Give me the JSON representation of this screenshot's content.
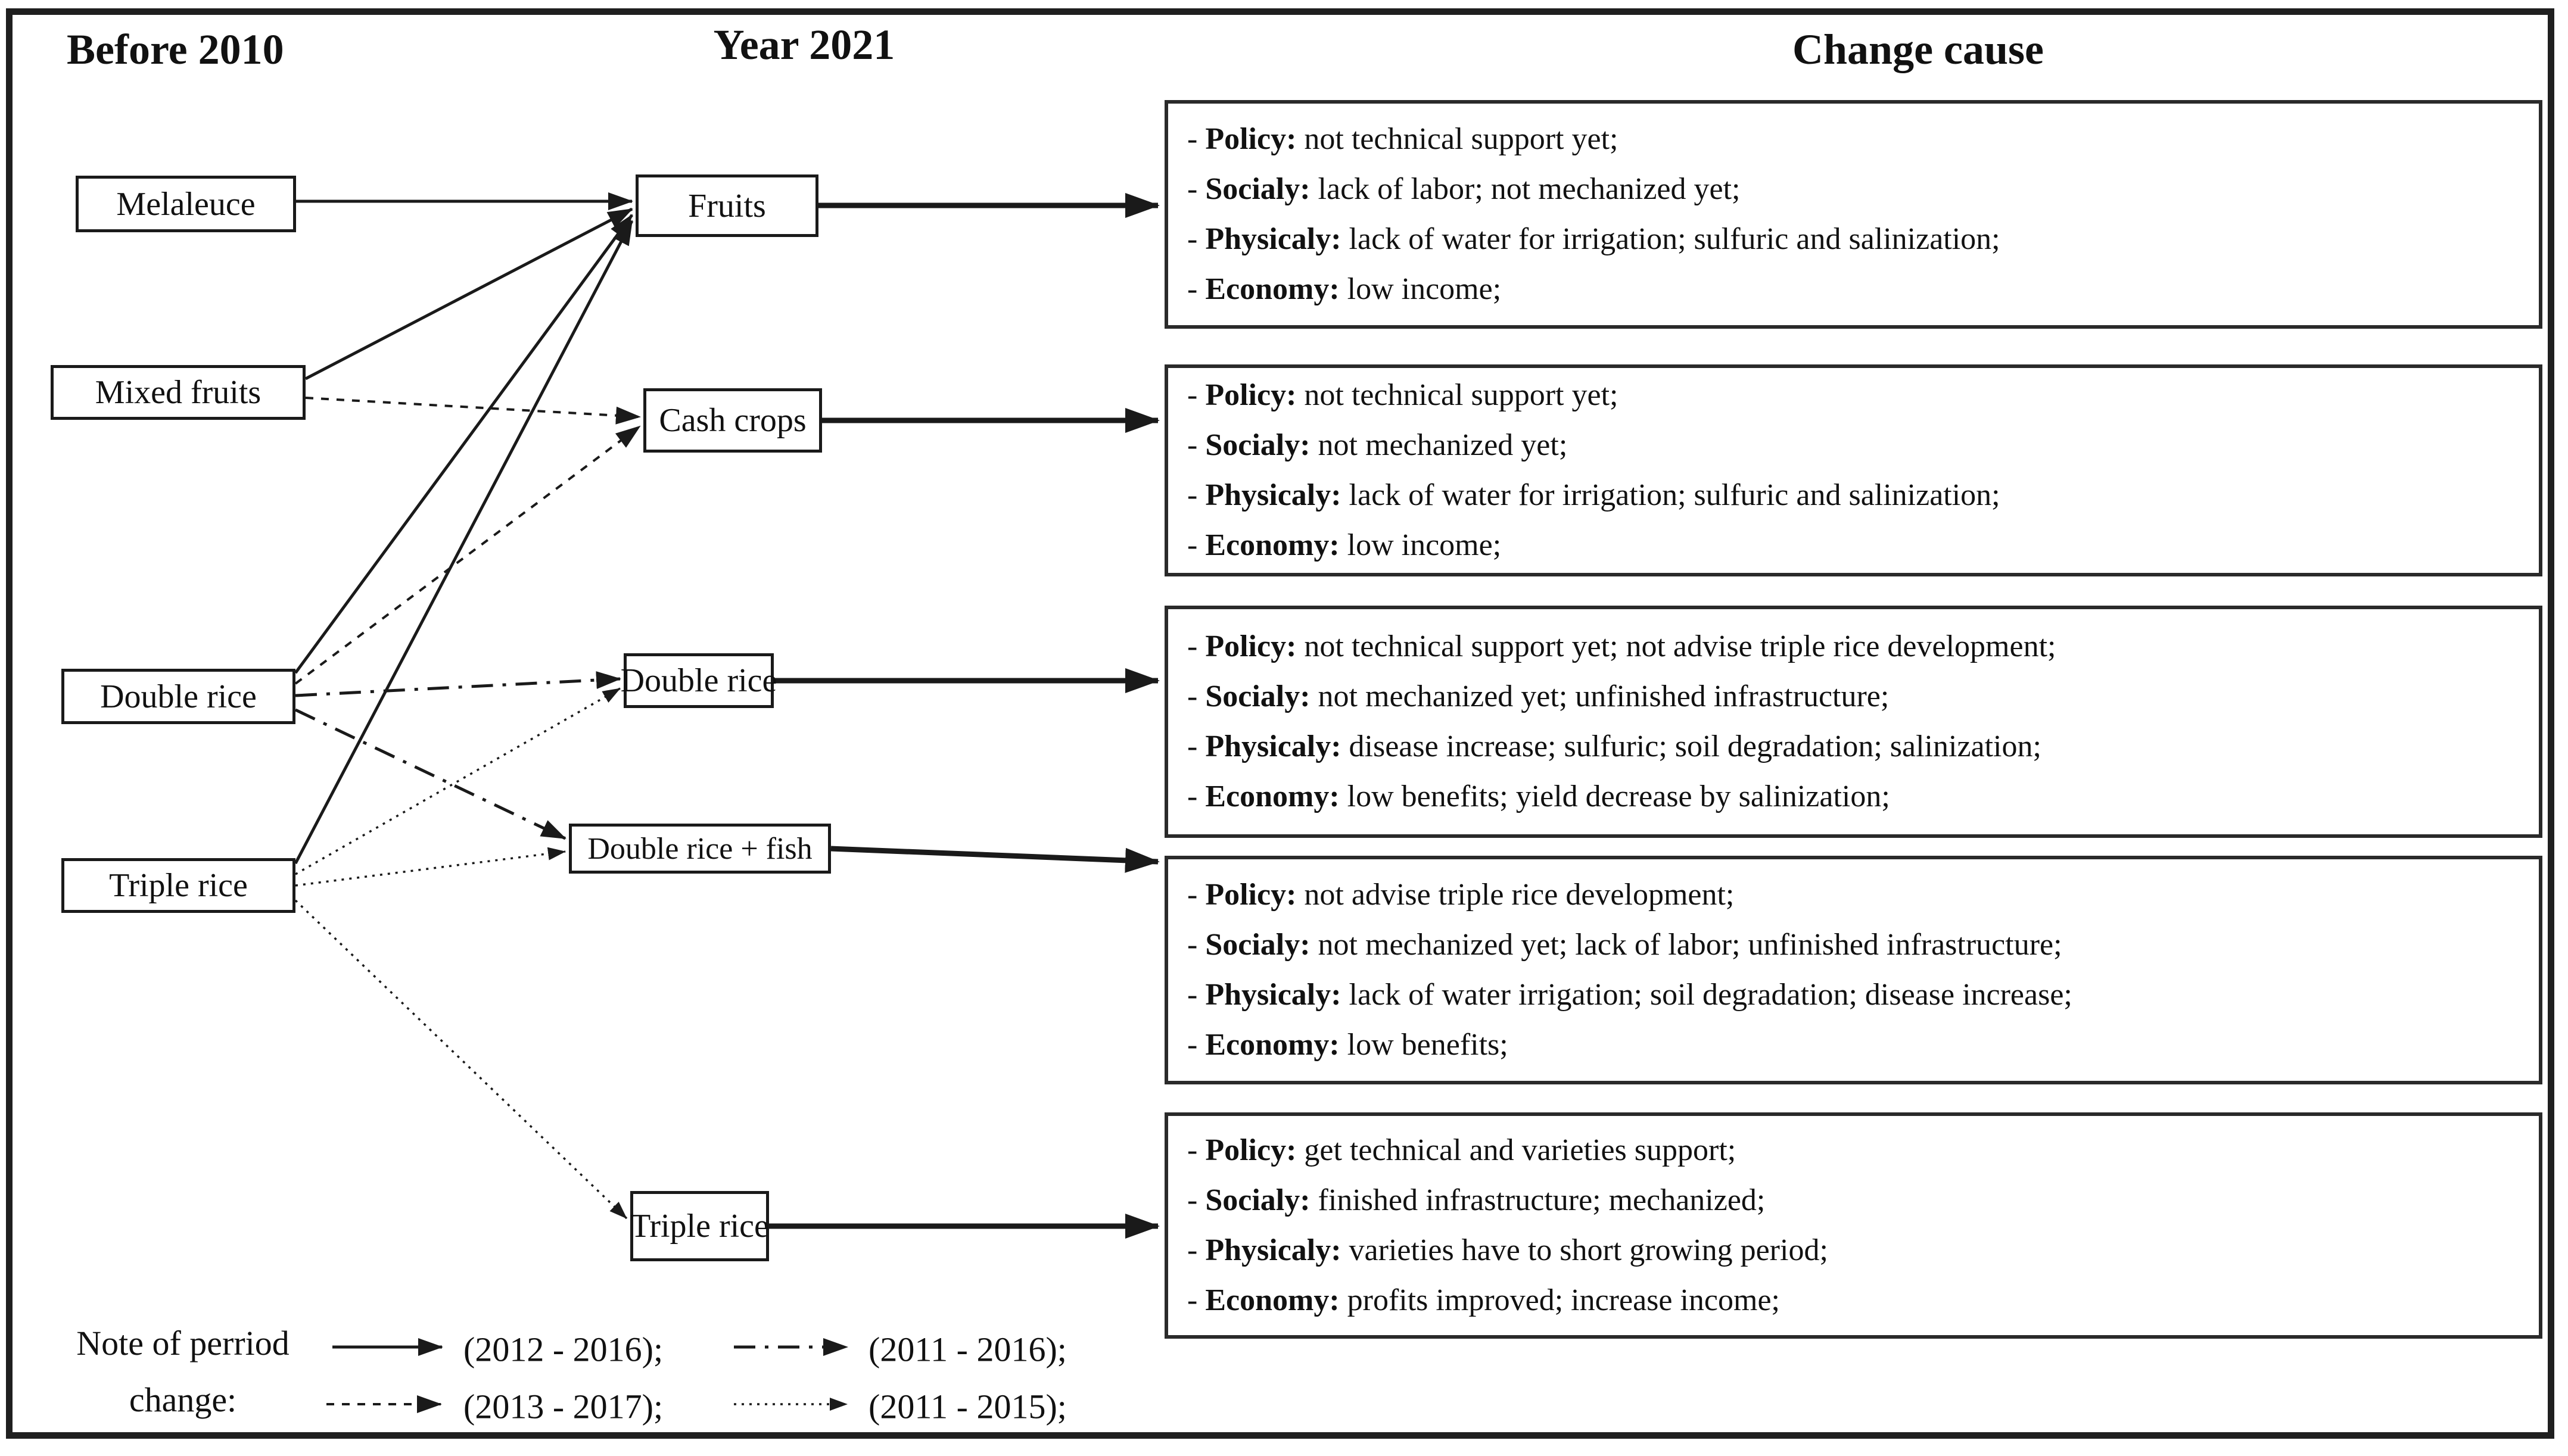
{
  "figure": {
    "headers": {
      "before": "Before 2010",
      "year": "Year 2021",
      "cause": "Change cause"
    }
  },
  "nodes": {
    "left": [
      {
        "id": "melaleuce",
        "label": "Melaleuce"
      },
      {
        "id": "mixed_fruits",
        "label": "Mixed fruits"
      },
      {
        "id": "double_rice_old",
        "label": "Double rice"
      },
      {
        "id": "triple_rice_old",
        "label": "Triple rice"
      }
    ],
    "middle": [
      {
        "id": "fruits",
        "label": "Fruits"
      },
      {
        "id": "cash_crops",
        "label": "Cash crops"
      },
      {
        "id": "double_rice_new",
        "label": "Double rice"
      },
      {
        "id": "double_rice_fish",
        "label": "Double rice + fish"
      },
      {
        "id": "triple_rice_new",
        "label": "Triple rice"
      }
    ]
  },
  "cause_boxes": [
    {
      "id": "cause_1",
      "lines": [
        {
          "label": "Policy",
          "text": "not technical support yet;"
        },
        {
          "label": "Socialy",
          "text": "lack of labor; not mechanized yet;"
        },
        {
          "label": "Physicaly",
          "text": "lack of water for irrigation; sulfuric and salinization;"
        },
        {
          "label": "Economy",
          "text": "low income;"
        }
      ]
    },
    {
      "id": "cause_2",
      "lines": [
        {
          "label": "Policy",
          "text": "not technical support yet;"
        },
        {
          "label": "Socialy",
          "text": "not mechanized yet;"
        },
        {
          "label": "Physicaly",
          "text": "lack of water for irrigation; sulfuric and salinization;"
        },
        {
          "label": "Economy",
          "text": "low income;"
        }
      ]
    },
    {
      "id": "cause_3",
      "lines": [
        {
          "label": "Policy",
          "text": "not technical support yet; not advise triple rice development;"
        },
        {
          "label": "Socialy",
          "text": "not mechanized yet; unfinished infrastructure;"
        },
        {
          "label": "Physicaly",
          "text": "disease increase; sulfuric; soil degradation; salinization;"
        },
        {
          "label": "Economy",
          "text": "low benefits; yield decrease by salinization;"
        }
      ]
    },
    {
      "id": "cause_4",
      "lines": [
        {
          "label": "Policy",
          "text": "not advise triple rice development;"
        },
        {
          "label": "Socialy",
          "text": "not mechanized yet; lack of labor; unfinished infrastructure;"
        },
        {
          "label": "Physicaly",
          "text": "lack of water irrigation; soil degradation; disease increase;"
        },
        {
          "label": "Economy",
          "text": "low benefits;"
        }
      ]
    },
    {
      "id": "cause_5",
      "lines": [
        {
          "label": "Policy",
          "text": "get technical and varieties support;"
        },
        {
          "label": "Socialy",
          "text": "finished infrastructure; mechanized;"
        },
        {
          "label": "Physicaly",
          "text": "varieties have to short growing period;"
        },
        {
          "label": "Economy",
          "text": "profits improved; increase income;"
        }
      ]
    }
  ],
  "edges": [
    {
      "from": "melaleuce",
      "to": "fruits",
      "style": "solid"
    },
    {
      "from": "mixed_fruits",
      "to": "fruits",
      "style": "solid"
    },
    {
      "from": "mixed_fruits",
      "to": "cash_crops",
      "style": "dashed"
    },
    {
      "from": "double_rice_old",
      "to": "fruits",
      "style": "solid"
    },
    {
      "from": "double_rice_old",
      "to": "cash_crops",
      "style": "dashed"
    },
    {
      "from": "double_rice_old",
      "to": "double_rice_new",
      "style": "dashdot"
    },
    {
      "from": "double_rice_old",
      "to": "double_rice_fish",
      "style": "dashdot"
    },
    {
      "from": "triple_rice_old",
      "to": "fruits",
      "style": "solid"
    },
    {
      "from": "triple_rice_old",
      "to": "double_rice_new",
      "style": "finedot"
    },
    {
      "from": "triple_rice_old",
      "to": "double_rice_fish",
      "style": "finedot"
    },
    {
      "from": "triple_rice_old",
      "to": "triple_rice_new",
      "style": "finedot"
    },
    {
      "from": "fruits",
      "to": "cause_1",
      "style": "thick"
    },
    {
      "from": "cash_crops",
      "to": "cause_2",
      "style": "thick"
    },
    {
      "from": "double_rice_new",
      "to": "cause_3",
      "style": "thick"
    },
    {
      "from": "double_rice_fish",
      "to": "cause_4",
      "style": "thick"
    },
    {
      "from": "triple_rice_new",
      "to": "cause_5",
      "style": "thick"
    }
  ],
  "legend": {
    "note_line1": "Note of perriod",
    "note_line2": "change:",
    "entries": [
      {
        "style": "solid",
        "label": "(2012 - 2016);"
      },
      {
        "style": "dashdot",
        "label": "(2011 - 2016);"
      },
      {
        "style": "dashed",
        "label": "(2013 - 2017);"
      },
      {
        "style": "finedot",
        "label": "(2011 - 2015);"
      }
    ]
  },
  "colors": {
    "ink": "#1a1a1a",
    "background": "#ffffff"
  }
}
